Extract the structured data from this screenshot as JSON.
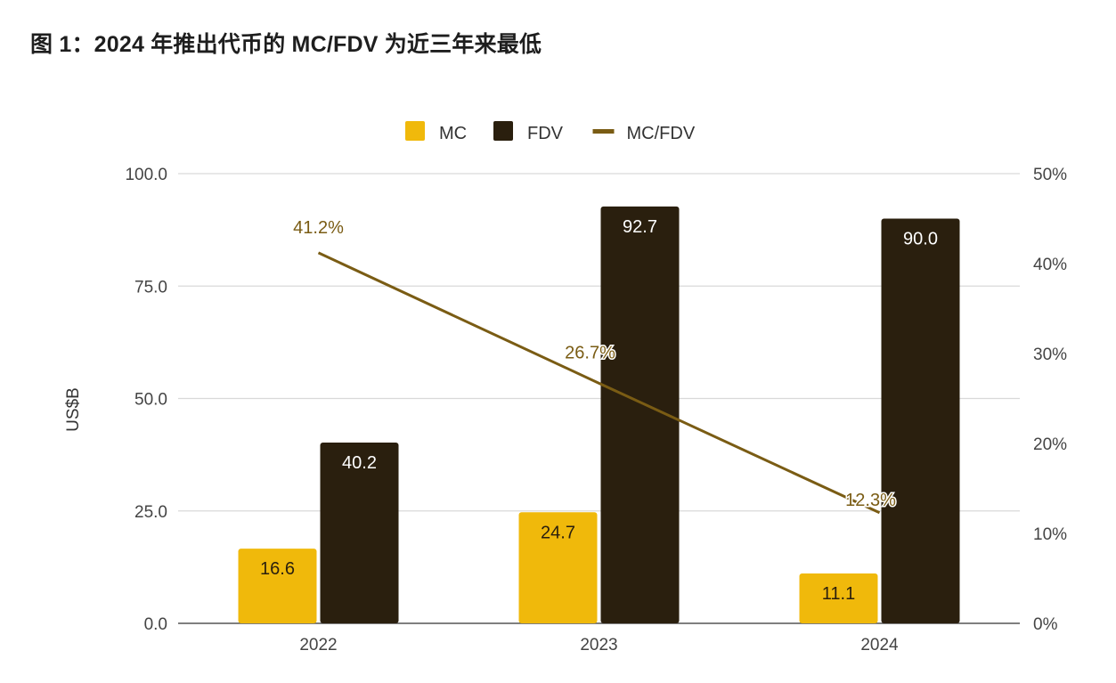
{
  "title": "图 1：2024 年推出代币的 MC/FDV 为近三年来最低",
  "chart_data": {
    "type": "bar",
    "title": "图 1：2024 年推出代币的 MC/FDV 为近三年来最低",
    "categories": [
      "2022",
      "2023",
      "2024"
    ],
    "series": [
      {
        "name": "MC",
        "type": "bar",
        "axis": "left",
        "color": "#F0B90B",
        "values": [
          16.6,
          24.7,
          11.1
        ],
        "labels": [
          "16.6",
          "24.7",
          "11.1"
        ]
      },
      {
        "name": "FDV",
        "type": "bar",
        "axis": "left",
        "color": "#2A1F0E",
        "values": [
          40.2,
          92.7,
          90.0
        ],
        "labels": [
          "40.2",
          "92.7",
          "90.0"
        ]
      },
      {
        "name": "MC/FDV",
        "type": "line",
        "axis": "right",
        "color": "#7A5C14",
        "values": [
          41.2,
          26.7,
          12.3
        ],
        "labels": [
          "41.2%",
          "26.7%",
          "12.3%"
        ]
      }
    ],
    "xlabel": "",
    "ylabel": "US$B",
    "ylim": [
      0,
      100
    ],
    "yticks": [
      "0.0",
      "25.0",
      "50.0",
      "75.0",
      "100.0"
    ],
    "y2lim": [
      0,
      50
    ],
    "y2ticks": [
      "0%",
      "10%",
      "20%",
      "30%",
      "40%",
      "50%"
    ],
    "grid": true,
    "legend": "top-center"
  }
}
